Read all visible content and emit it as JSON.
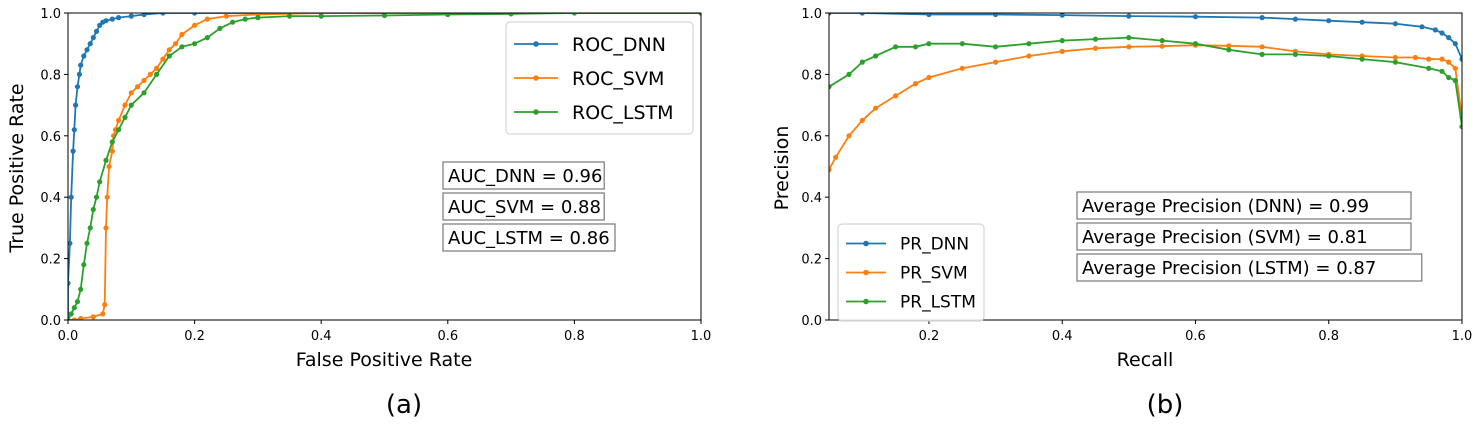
{
  "chart_data": [
    {
      "type": "line",
      "caption": "(a)",
      "xlabel": "False Positive Rate",
      "ylabel": "True Positive Rate",
      "xlim": [
        0,
        1
      ],
      "ylim": [
        0,
        1
      ],
      "xticks": [
        "0.0",
        "0.2",
        "0.4",
        "0.6",
        "0.8",
        "1.0"
      ],
      "yticks": [
        "0.0",
        "0.2",
        "0.4",
        "0.6",
        "0.8",
        "1.0"
      ],
      "grid": false,
      "legend_position": "upper right",
      "annotations": [
        "AUC_DNN = 0.96",
        "AUC_SVM = 0.88",
        "AUC_LSTM = 0.86"
      ],
      "series": [
        {
          "name": "ROC_DNN",
          "color": "#1f77b4",
          "x": [
            0,
            0,
            0.003,
            0.005,
            0.008,
            0.01,
            0.012,
            0.015,
            0.018,
            0.02,
            0.025,
            0.03,
            0.035,
            0.04,
            0.045,
            0.05,
            0.055,
            0.06,
            0.07,
            0.08,
            0.1,
            0.12,
            0.15,
            0.2,
            0.3,
            0.5,
            0.7,
            1.0
          ],
          "y": [
            0,
            0.12,
            0.25,
            0.4,
            0.55,
            0.62,
            0.7,
            0.76,
            0.8,
            0.83,
            0.86,
            0.88,
            0.9,
            0.92,
            0.94,
            0.96,
            0.97,
            0.975,
            0.98,
            0.985,
            0.99,
            0.995,
            1.0,
            1.0,
            1.0,
            1.0,
            1.0,
            1.0
          ]
        },
        {
          "name": "ROC_SVM",
          "color": "#ff7f0e",
          "x": [
            0,
            0.01,
            0.02,
            0.04,
            0.055,
            0.058,
            0.06,
            0.062,
            0.065,
            0.07,
            0.072,
            0.075,
            0.08,
            0.09,
            0.1,
            0.11,
            0.12,
            0.13,
            0.14,
            0.15,
            0.16,
            0.17,
            0.18,
            0.2,
            0.22,
            0.25,
            0.3,
            0.4,
            0.5,
            0.7,
            1.0
          ],
          "y": [
            0,
            0,
            0.005,
            0.01,
            0.02,
            0.05,
            0.3,
            0.4,
            0.5,
            0.55,
            0.6,
            0.62,
            0.65,
            0.7,
            0.74,
            0.76,
            0.78,
            0.8,
            0.82,
            0.85,
            0.88,
            0.9,
            0.93,
            0.96,
            0.98,
            0.99,
            0.995,
            1.0,
            1.0,
            1.0,
            1.0
          ]
        },
        {
          "name": "ROC_LSTM",
          "color": "#2ca02c",
          "x": [
            0,
            0.005,
            0.01,
            0.015,
            0.02,
            0.025,
            0.03,
            0.035,
            0.04,
            0.045,
            0.05,
            0.06,
            0.07,
            0.08,
            0.09,
            0.1,
            0.12,
            0.14,
            0.16,
            0.18,
            0.2,
            0.22,
            0.24,
            0.26,
            0.28,
            0.3,
            0.35,
            0.4,
            0.5,
            0.6,
            0.7,
            0.8,
            1.0
          ],
          "y": [
            0,
            0.02,
            0.04,
            0.06,
            0.1,
            0.18,
            0.25,
            0.3,
            0.36,
            0.4,
            0.45,
            0.52,
            0.58,
            0.62,
            0.66,
            0.7,
            0.74,
            0.8,
            0.86,
            0.89,
            0.9,
            0.92,
            0.95,
            0.97,
            0.98,
            0.985,
            0.99,
            0.99,
            0.992,
            0.995,
            0.997,
            1.0,
            1.0
          ]
        }
      ]
    },
    {
      "type": "line",
      "caption": "(b)",
      "xlabel": "Recall",
      "ylabel": "Precision",
      "xlim": [
        0.05,
        1
      ],
      "ylim": [
        0,
        1
      ],
      "xticks": [
        "0.2",
        "0.4",
        "0.6",
        "0.8",
        "1.0"
      ],
      "yticks": [
        "0.0",
        "0.2",
        "0.4",
        "0.6",
        "0.8",
        "1.0"
      ],
      "grid": false,
      "legend_position": "lower left",
      "annotations": [
        "Average Precision (DNN) = 0.99",
        "Average Precision (SVM) = 0.81",
        "Average Precision (LSTM) = 0.87"
      ],
      "series": [
        {
          "name": "PR_DNN",
          "color": "#1f77b4",
          "x": [
            0.05,
            0.1,
            0.2,
            0.3,
            0.4,
            0.5,
            0.6,
            0.7,
            0.75,
            0.8,
            0.85,
            0.9,
            0.94,
            0.96,
            0.97,
            0.98,
            0.99,
            1.0
          ],
          "y": [
            1.0,
            1.0,
            0.995,
            0.995,
            0.993,
            0.99,
            0.988,
            0.985,
            0.98,
            0.975,
            0.97,
            0.965,
            0.955,
            0.945,
            0.935,
            0.92,
            0.9,
            0.85
          ]
        },
        {
          "name": "PR_SVM",
          "color": "#ff7f0e",
          "x": [
            0.05,
            0.06,
            0.08,
            0.1,
            0.12,
            0.15,
            0.18,
            0.2,
            0.25,
            0.3,
            0.35,
            0.4,
            0.45,
            0.5,
            0.55,
            0.6,
            0.65,
            0.7,
            0.75,
            0.8,
            0.85,
            0.9,
            0.93,
            0.95,
            0.97,
            0.98,
            0.99,
            1.0
          ],
          "y": [
            0.49,
            0.53,
            0.6,
            0.65,
            0.69,
            0.73,
            0.77,
            0.79,
            0.82,
            0.84,
            0.86,
            0.875,
            0.885,
            0.89,
            0.892,
            0.895,
            0.893,
            0.89,
            0.875,
            0.865,
            0.86,
            0.855,
            0.855,
            0.85,
            0.85,
            0.84,
            0.82,
            0.66
          ]
        },
        {
          "name": "PR_LSTM",
          "color": "#2ca02c",
          "x": [
            0.05,
            0.08,
            0.1,
            0.12,
            0.15,
            0.18,
            0.2,
            0.25,
            0.3,
            0.35,
            0.4,
            0.45,
            0.5,
            0.55,
            0.6,
            0.65,
            0.7,
            0.75,
            0.8,
            0.85,
            0.9,
            0.95,
            0.97,
            0.98,
            0.99,
            1.0
          ],
          "y": [
            0.76,
            0.8,
            0.84,
            0.86,
            0.89,
            0.89,
            0.9,
            0.9,
            0.89,
            0.9,
            0.91,
            0.915,
            0.92,
            0.91,
            0.9,
            0.88,
            0.865,
            0.865,
            0.86,
            0.85,
            0.84,
            0.82,
            0.81,
            0.79,
            0.78,
            0.63
          ]
        }
      ]
    }
  ]
}
